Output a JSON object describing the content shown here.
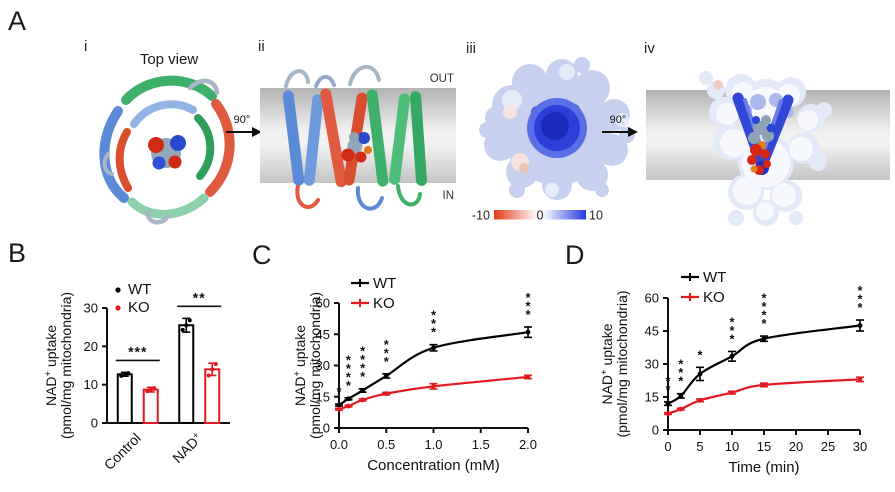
{
  "panel_a": {
    "label": "A",
    "i": {
      "label": "i",
      "title": "Top view"
    },
    "rotate_1": "90°",
    "ii": {
      "label": "ii",
      "out": "OUT",
      "in": "IN"
    },
    "iii": {
      "label": "iii",
      "scale": {
        "min": "-10",
        "mid": "0",
        "max": "10",
        "min_color": "#e63a17",
        "mid_color": "#ffffff",
        "max_color": "#2139de"
      }
    },
    "rotate_2": "90°",
    "iv": {
      "label": "iv"
    }
  },
  "panel_labels": {
    "b": "B",
    "c": "C",
    "d": "D"
  },
  "colors": {
    "wt": "#000000",
    "ko": "#e01a20",
    "axis": "#111111"
  },
  "chart_data": [
    {
      "id": "B",
      "type": "bar",
      "ylabel_line1": "NAD+ uptake",
      "ylabel_line2": "(pmol/mg mitochondria)",
      "ylim": [
        0,
        30
      ],
      "yticks": [
        0,
        10,
        20,
        30
      ],
      "categories": [
        "Control",
        "NAD+"
      ],
      "series": [
        {
          "name": "WT",
          "color": "#000000",
          "values": [
            12.7,
            25.5
          ],
          "errors": [
            0.5,
            1.8
          ],
          "points": [
            [
              12.3,
              12.7,
              13.0
            ],
            [
              24.3,
              25.5,
              26.8
            ]
          ]
        },
        {
          "name": "KO",
          "color": "#e01a20",
          "values": [
            8.7,
            14.0
          ],
          "errors": [
            0.6,
            1.6
          ],
          "points": [
            [
              8.3,
              8.7,
              9.1
            ],
            [
              12.4,
              14.0,
              15.4
            ]
          ]
        }
      ],
      "significance": [
        "***",
        "**"
      ],
      "legend": [
        "WT",
        "KO"
      ],
      "legend_position": "top-left",
      "grid": false
    },
    {
      "id": "C",
      "type": "line",
      "xlabel": "Concentration (mM)",
      "ylabel_line1": "NAD+ uptake",
      "ylabel_line2": "(pmol/mg mitochondria)",
      "xlim": [
        0,
        2
      ],
      "ylim": [
        0,
        60
      ],
      "xticks": [
        0,
        0.5,
        1.0,
        1.5,
        2.0
      ],
      "xtick_labels": [
        "0.0",
        "0.5",
        "1.0",
        "1.5",
        "2.0"
      ],
      "yticks": [
        0,
        15,
        30,
        45,
        60
      ],
      "x": [
        0,
        0.1,
        0.25,
        0.5,
        1.0,
        2.0
      ],
      "series": [
        {
          "name": "WT",
          "color": "#000000",
          "values": [
            11,
            14,
            18,
            25,
            38.5,
            46
          ],
          "errors": [
            0.5,
            0.5,
            0.8,
            1.0,
            1.5,
            2.5
          ]
        },
        {
          "name": "KO",
          "color": "#e01a20",
          "values": [
            9,
            10.5,
            13.5,
            16.5,
            20,
            24.5
          ],
          "errors": [
            0.4,
            0.4,
            0.5,
            0.6,
            1.3,
            0.8
          ]
        }
      ],
      "significance": [
        "*",
        "****",
        "****",
        "***",
        "***",
        "***"
      ],
      "legend": [
        "WT",
        "KO"
      ],
      "legend_position": "top-left",
      "grid": false
    },
    {
      "id": "D",
      "type": "line",
      "xlabel": "Time (min)",
      "ylabel_line1": "NAD+ uptake",
      "ylabel_line2": "(pmol/mg mitochondria)",
      "xlim": [
        0,
        30
      ],
      "ylim": [
        0,
        60
      ],
      "xticks": [
        0,
        5,
        10,
        15,
        20,
        25,
        30
      ],
      "xtick_labels": [
        "0",
        "5",
        "10",
        "15",
        "20",
        "25",
        "30"
      ],
      "yticks": [
        0,
        15,
        30,
        45,
        60
      ],
      "x": [
        0,
        2,
        5,
        10,
        15,
        30
      ],
      "series": [
        {
          "name": "WT",
          "color": "#000000",
          "values": [
            12,
            15.5,
            25.5,
            33.5,
            41.5,
            47.5
          ],
          "errors": [
            0.8,
            1.0,
            3.0,
            2.2,
            1.2,
            2.5
          ]
        },
        {
          "name": "KO",
          "color": "#e01a20",
          "values": [
            7.5,
            9.5,
            13.5,
            17,
            20.5,
            23
          ],
          "errors": [
            0.4,
            0.4,
            0.6,
            0.6,
            0.8,
            1.0
          ]
        }
      ],
      "significance": [
        "**",
        "***",
        "*",
        "***",
        "****",
        "***"
      ],
      "legend": [
        "WT",
        "KO"
      ],
      "legend_position": "top-left",
      "grid": false
    }
  ]
}
